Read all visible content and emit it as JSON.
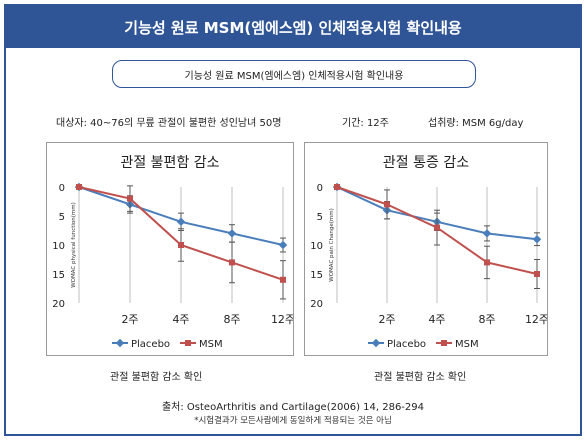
{
  "header": {
    "title": "기능성 원료 MSM(엠에스엠) 인체적용시험 확인내용"
  },
  "subtitle": "기능성 원료 MSM(엠에스엠) 인체적용시험 확인내용",
  "info": {
    "subjects": "대상자: 40~76의 무릎 관절이 불편한 성인남녀 50명",
    "period": "기간: 12주",
    "dose": "섭취량: MSM 6g/day"
  },
  "captions": [
    "관절 불편함 감소 확인",
    "관절 불편함 감소 확인"
  ],
  "source": "출처: OsteoArthritis and Cartilage(2006) 14, 286-294",
  "note": "*시험결과가 모든사람에게 동일하게 적용되는 것은 아님",
  "colors": {
    "header": "#2f5597",
    "placebo": "#4a7ebb",
    "msm": "#c0504d"
  },
  "chart_data": [
    {
      "type": "line",
      "title": "관절 불편함 감소",
      "ylabel": "WOMAC physical function(mm)",
      "xlabel": "",
      "categories": [
        "",
        "2주",
        "4주",
        "8주",
        "12주"
      ],
      "y_ticks": [
        0,
        5,
        10,
        15,
        20
      ],
      "ylim": [
        0,
        20
      ],
      "y_inverted": true,
      "grid": "vertical",
      "legend": "bottom",
      "series": [
        {
          "name": "Placebo",
          "values": [
            0,
            3,
            6,
            8,
            10
          ],
          "error": [
            0,
            1.5,
            1.5,
            1.5,
            1.2
          ]
        },
        {
          "name": "MSM",
          "values": [
            0,
            2,
            10,
            13,
            16
          ],
          "error": [
            0,
            2.2,
            2.8,
            3.5,
            3.3
          ]
        }
      ]
    },
    {
      "type": "line",
      "title": "관절 통증 감소",
      "ylabel": "WOMAC pain Change(mm)",
      "xlabel": "",
      "categories": [
        "",
        "2주",
        "4주",
        "8주",
        "12주"
      ],
      "y_ticks": [
        0,
        5,
        10,
        15,
        20
      ],
      "ylim": [
        0,
        20
      ],
      "y_inverted": true,
      "grid": "vertical",
      "legend": "bottom",
      "series": [
        {
          "name": "Placebo",
          "values": [
            0,
            4,
            6,
            8,
            9
          ],
          "error": [
            0,
            1.5,
            1.5,
            1.3,
            1.1
          ]
        },
        {
          "name": "MSM",
          "values": [
            0,
            3,
            7,
            13,
            15
          ],
          "error": [
            0,
            2.5,
            3.0,
            2.8,
            2.5
          ]
        }
      ]
    }
  ]
}
